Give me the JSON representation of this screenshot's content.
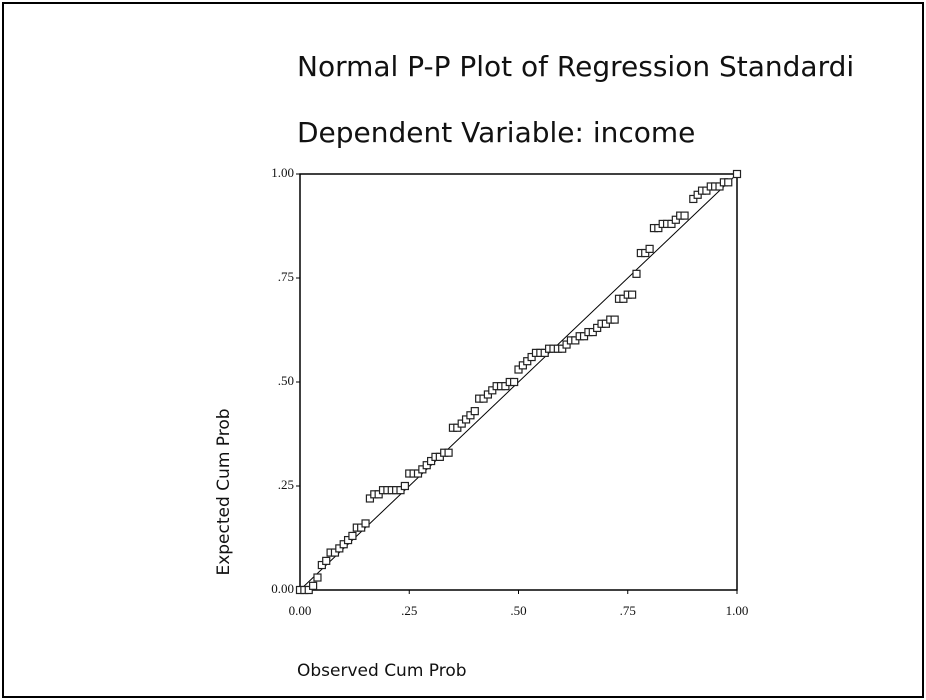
{
  "chart_data": {
    "type": "scatter",
    "title": "Normal P-P Plot of Regression Standardi",
    "subtitle": "Dependent Variable: income",
    "x_label": "Observed Cum Prob",
    "y_label": "Expected Cum Prob",
    "xlim": [
      0,
      1
    ],
    "ylim": [
      0,
      1
    ],
    "xticks": [
      {
        "value": 0,
        "label": "0.00"
      },
      {
        "value": 0.25,
        "label": ".25"
      },
      {
        "value": 0.5,
        "label": ".50"
      },
      {
        "value": 0.75,
        "label": ".75"
      },
      {
        "value": 1,
        "label": "1.00"
      }
    ],
    "yticks": [
      {
        "value": 0,
        "label": "0.00"
      },
      {
        "value": 0.25,
        "label": ".25"
      },
      {
        "value": 0.5,
        "label": ".50"
      },
      {
        "value": 0.75,
        "label": ".75"
      },
      {
        "value": 1,
        "label": "1.00"
      }
    ],
    "color": "#222222",
    "reference_line": true,
    "x": [
      0.0,
      0.01,
      0.02,
      0.03,
      0.04,
      0.05,
      0.06,
      0.07,
      0.08,
      0.09,
      0.1,
      0.11,
      0.12,
      0.13,
      0.14,
      0.15,
      0.16,
      0.17,
      0.18,
      0.19,
      0.2,
      0.21,
      0.22,
      0.23,
      0.24,
      0.25,
      0.26,
      0.27,
      0.28,
      0.29,
      0.3,
      0.31,
      0.32,
      0.33,
      0.34,
      0.35,
      0.36,
      0.37,
      0.38,
      0.39,
      0.4,
      0.41,
      0.42,
      0.43,
      0.44,
      0.45,
      0.46,
      0.47,
      0.48,
      0.49,
      0.5,
      0.51,
      0.52,
      0.53,
      0.54,
      0.55,
      0.56,
      0.57,
      0.58,
      0.59,
      0.6,
      0.61,
      0.62,
      0.63,
      0.64,
      0.65,
      0.66,
      0.67,
      0.68,
      0.69,
      0.7,
      0.71,
      0.72,
      0.73,
      0.74,
      0.75,
      0.76,
      0.77,
      0.78,
      0.79,
      0.8,
      0.81,
      0.82,
      0.83,
      0.84,
      0.85,
      0.86,
      0.87,
      0.88,
      0.9,
      0.91,
      0.92,
      0.93,
      0.94,
      0.95,
      0.96,
      0.97,
      0.98,
      1.0
    ],
    "y": [
      0.0,
      0.0,
      0.0,
      0.01,
      0.03,
      0.06,
      0.07,
      0.09,
      0.09,
      0.1,
      0.11,
      0.12,
      0.13,
      0.15,
      0.15,
      0.16,
      0.22,
      0.23,
      0.23,
      0.24,
      0.24,
      0.24,
      0.24,
      0.24,
      0.25,
      0.28,
      0.28,
      0.28,
      0.29,
      0.3,
      0.31,
      0.32,
      0.32,
      0.33,
      0.33,
      0.39,
      0.39,
      0.4,
      0.41,
      0.42,
      0.43,
      0.46,
      0.46,
      0.47,
      0.48,
      0.49,
      0.49,
      0.49,
      0.5,
      0.5,
      0.53,
      0.54,
      0.55,
      0.56,
      0.57,
      0.57,
      0.57,
      0.58,
      0.58,
      0.58,
      0.58,
      0.59,
      0.6,
      0.6,
      0.61,
      0.61,
      0.62,
      0.62,
      0.63,
      0.64,
      0.64,
      0.65,
      0.65,
      0.7,
      0.7,
      0.71,
      0.71,
      0.76,
      0.81,
      0.81,
      0.82,
      0.87,
      0.87,
      0.88,
      0.88,
      0.88,
      0.89,
      0.9,
      0.9,
      0.94,
      0.95,
      0.96,
      0.96,
      0.97,
      0.97,
      0.97,
      0.98,
      0.98,
      1.0
    ]
  }
}
